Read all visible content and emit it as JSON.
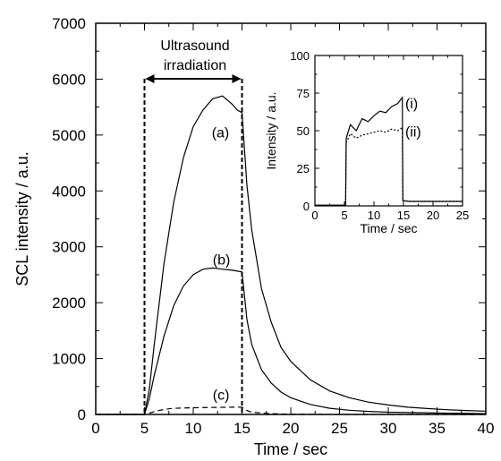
{
  "chart_data": [
    {
      "type": "line",
      "xlabel": "Time / sec",
      "ylabel": "SCL intensity / a.u.",
      "xlim": [
        0,
        40
      ],
      "ylim": [
        0,
        7000
      ],
      "xticks": [
        "0",
        "5",
        "10",
        "15",
        "20",
        "25",
        "30",
        "35",
        "40"
      ],
      "yticks": [
        "0",
        "1000",
        "2000",
        "3000",
        "4000",
        "5000",
        "6000",
        "7000"
      ],
      "grid": false,
      "legend": "none",
      "annotations": {
        "ultrasound": "Ultrasound",
        "irradiation": "irradiation",
        "irradiation_start": 5,
        "irradiation_end": 15
      },
      "series": [
        {
          "label": "(a)",
          "style": "solid",
          "x": [
            0,
            5,
            5.5,
            6,
            7,
            8,
            9,
            10,
            11,
            12,
            13,
            14,
            14.5,
            15,
            15.5,
            16,
            17,
            18,
            19,
            20,
            22,
            24,
            26,
            28,
            30,
            32,
            34,
            36,
            38,
            40
          ],
          "y": [
            0,
            0,
            450,
            1250,
            2700,
            3800,
            4600,
            5150,
            5450,
            5650,
            5700,
            5550,
            5450,
            5400,
            4100,
            3300,
            2250,
            1650,
            1200,
            950,
            620,
            420,
            300,
            220,
            170,
            130,
            105,
            85,
            70,
            60
          ]
        },
        {
          "label": "(b)",
          "style": "solid",
          "x": [
            0,
            5,
            5.5,
            6,
            7,
            8,
            9,
            10,
            11,
            12,
            13,
            14,
            15,
            15.5,
            16,
            17,
            18,
            19,
            20,
            22,
            24,
            26,
            28,
            30,
            35,
            40
          ],
          "y": [
            0,
            0,
            280,
            700,
            1400,
            1950,
            2300,
            2500,
            2600,
            2620,
            2600,
            2580,
            2550,
            1700,
            1250,
            800,
            560,
            400,
            300,
            180,
            110,
            75,
            55,
            40,
            25,
            15
          ]
        },
        {
          "label": "(c)",
          "style": "dashed",
          "x": [
            0,
            5,
            6,
            7,
            8,
            10,
            12,
            14,
            15,
            15.5,
            16,
            18,
            20,
            25,
            40
          ],
          "y": [
            0,
            0,
            50,
            90,
            110,
            120,
            125,
            130,
            130,
            70,
            40,
            15,
            5,
            0,
            0
          ]
        }
      ]
    },
    {
      "type": "line",
      "inset": true,
      "xlabel": "Time / sec",
      "ylabel": "Intensity / a.u.",
      "xlim": [
        0,
        25
      ],
      "ylim": [
        0,
        100
      ],
      "xticks": [
        "0",
        "5",
        "10",
        "15",
        "20",
        "25"
      ],
      "yticks": [
        "0",
        "25",
        "50",
        "75",
        "100"
      ],
      "grid": false,
      "series": [
        {
          "label": "(i)",
          "style": "solid",
          "x": [
            0,
            5.2,
            5.3,
            6,
            7,
            8,
            9,
            10,
            11,
            12,
            13,
            14,
            14.8,
            14.9,
            16,
            20,
            25
          ],
          "y": [
            0.5,
            0.5,
            45,
            54,
            50,
            58,
            56,
            60,
            63,
            62,
            66,
            68,
            72,
            3.5,
            3,
            3,
            3
          ]
        },
        {
          "label": "(ii)",
          "style": "dotted",
          "x": [
            0,
            5.2,
            5.3,
            6,
            7,
            8,
            9,
            10,
            11,
            12,
            13,
            14,
            14.8,
            14.9,
            16,
            20,
            25
          ],
          "y": [
            0.5,
            0.5,
            42,
            48,
            45,
            47,
            48,
            49,
            50,
            49,
            51,
            50,
            52,
            3.5,
            3,
            3,
            3
          ]
        }
      ]
    }
  ]
}
